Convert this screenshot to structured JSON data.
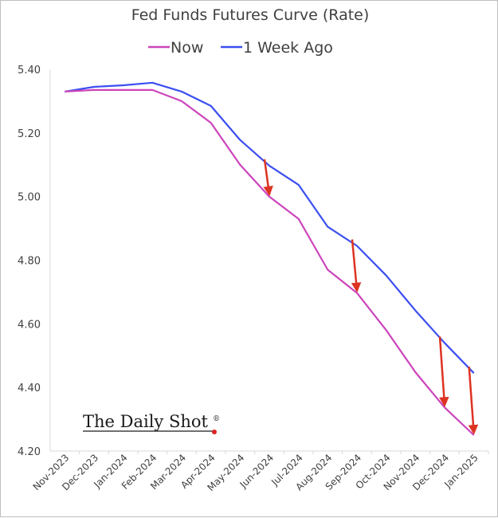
{
  "chart_data": {
    "type": "line",
    "title": "Fed Funds Futures Curve (Rate)",
    "xlabel": "",
    "ylabel": "",
    "categories": [
      "Nov-2023",
      "Dec-2023",
      "Jan-2024",
      "Feb-2024",
      "Mar-2024",
      "Apr-2024",
      "May-2024",
      "Jun-2024",
      "Jul-2024",
      "Aug-2024",
      "Sep-2024",
      "Oct-2024",
      "Nov-2024",
      "Dec-2024",
      "Jan-2025"
    ],
    "y_ticks": [
      "4.20",
      "4.40",
      "4.60",
      "4.80",
      "5.00",
      "5.20",
      "5.40"
    ],
    "ylim": [
      4.2,
      5.4
    ],
    "grid": false,
    "legend_position": "top",
    "series": [
      {
        "name": "Now",
        "color": "#cc44bb",
        "values": [
          5.33,
          5.335,
          5.335,
          5.335,
          5.3,
          5.232,
          5.1,
          5.0,
          4.93,
          4.77,
          4.697,
          4.58,
          4.448,
          4.337,
          4.25
        ]
      },
      {
        "name": "1 Week Ago",
        "color": "#3b4ff0",
        "values": [
          5.33,
          5.345,
          5.35,
          5.358,
          5.33,
          5.285,
          5.178,
          5.097,
          5.037,
          4.905,
          4.845,
          4.752,
          4.642,
          4.54,
          4.445
        ]
      }
    ],
    "annotations": {
      "arrow_color": "#dd3322",
      "arrow_categories": [
        "Jun-2024",
        "Sep-2024",
        "Dec-2024",
        "Jan-2025"
      ]
    }
  },
  "watermark": {
    "text": "The Daily Shot",
    "mark": "®"
  }
}
